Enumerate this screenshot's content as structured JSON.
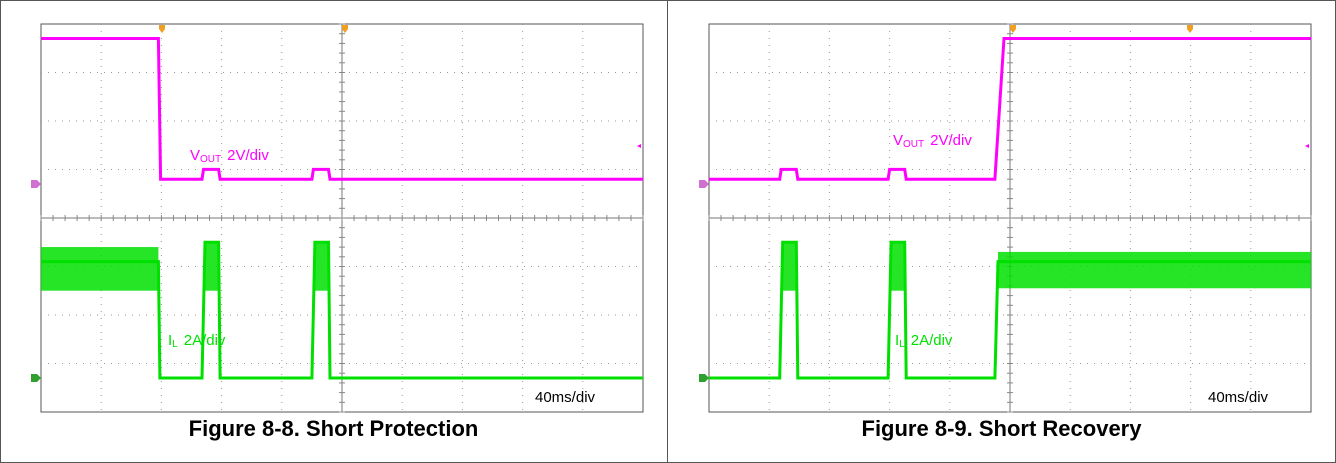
{
  "colors": {
    "vout": "#ff00ff",
    "il": "#00e000",
    "vout_marker": "#d070d0",
    "il_marker": "#30a030",
    "trigger_marker": "#f0a020",
    "grid": "#9a9a9a",
    "scope_border": "#555555"
  },
  "chart_data": [
    {
      "type": "line",
      "title": "Figure 8-8. Short Protection",
      "time_scale": "40ms/div",
      "xlim_ms": [
        0,
        400
      ],
      "series": [
        {
          "name": "VOUT",
          "label_main": "V",
          "label_sub": "OUT",
          "label_scale": "2V/div",
          "unit": "V",
          "points": [
            [
              0,
              6.0
            ],
            [
              78,
              6.0
            ],
            [
              79.5,
              0.2
            ],
            [
              107,
              0.2
            ],
            [
              108,
              0.6
            ],
            [
              118,
              0.6
            ],
            [
              119,
              0.2
            ],
            [
              180,
              0.2
            ],
            [
              181,
              0.6
            ],
            [
              191,
              0.6
            ],
            [
              192,
              0.2
            ],
            [
              400,
              0.2
            ]
          ]
        },
        {
          "name": "IL",
          "label_main": "I",
          "label_sub": "L",
          "label_scale": "2A/div",
          "unit": "A",
          "points": [
            [
              0,
              4.8
            ],
            [
              78,
              4.8
            ],
            [
              79,
              0
            ],
            [
              107,
              0
            ],
            [
              109,
              5.6
            ],
            [
              118,
              5.6
            ],
            [
              119,
              0
            ],
            [
              180,
              0
            ],
            [
              182,
              5.6
            ],
            [
              191,
              5.6
            ],
            [
              192,
              0
            ],
            [
              400,
              0
            ]
          ],
          "ripple_bands": [
            [
              0,
              78,
              3.6,
              5.4
            ],
            [
              109,
              118,
              3.6,
              5.6
            ],
            [
              182,
              191,
              3.6,
              5.6
            ]
          ]
        }
      ]
    },
    {
      "type": "line",
      "title": "Figure 8-9. Short Recovery",
      "time_scale": "40ms/div",
      "xlim_ms": [
        0,
        400
      ],
      "series": [
        {
          "name": "VOUT",
          "label_main": "V",
          "label_sub": "OUT",
          "label_scale": "2V/div",
          "unit": "V",
          "points": [
            [
              0,
              0.2
            ],
            [
              47,
              0.2
            ],
            [
              48,
              0.6
            ],
            [
              58,
              0.6
            ],
            [
              59,
              0.2
            ],
            [
              119,
              0.2
            ],
            [
              120,
              0.6
            ],
            [
              130,
              0.6
            ],
            [
              131,
              0.2
            ],
            [
              190,
              0.2
            ],
            [
              196,
              6.0
            ],
            [
              400,
              6.0
            ]
          ]
        },
        {
          "name": "IL",
          "label_main": "I",
          "label_sub": "L",
          "label_scale": "2A/div",
          "unit": "A",
          "points": [
            [
              0,
              0
            ],
            [
              47,
              0
            ],
            [
              49,
              5.6
            ],
            [
              58,
              5.6
            ],
            [
              59,
              0
            ],
            [
              119,
              0
            ],
            [
              121,
              5.6
            ],
            [
              130,
              5.6
            ],
            [
              131,
              0
            ],
            [
              190,
              0
            ],
            [
              192,
              4.8
            ],
            [
              400,
              4.8
            ]
          ],
          "ripple_bands": [
            [
              49,
              58,
              3.6,
              5.6
            ],
            [
              121,
              130,
              3.6,
              5.6
            ],
            [
              192,
              400,
              3.7,
              5.2
            ]
          ]
        }
      ]
    }
  ]
}
